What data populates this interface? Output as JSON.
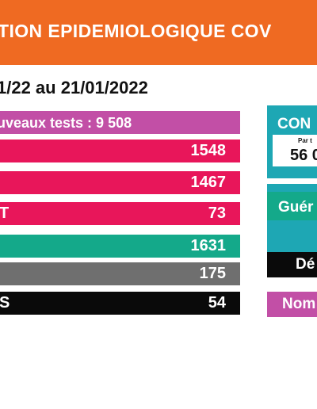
{
  "banner": {
    "title": "TION EPIDEMIOLOGIQUE COV"
  },
  "date_range": "1/22 au 21/01/2022",
  "rows": [
    {
      "label": "uveaux tests :  9 508",
      "value": ""
    },
    {
      "label": "",
      "value": "1548"
    },
    {
      "label": "",
      "value": "1467"
    },
    {
      "label": "T",
      "value": "73"
    },
    {
      "label": "",
      "value": "1631"
    },
    {
      "label": "",
      "value": "175"
    },
    {
      "label": "S",
      "value": "54"
    }
  ],
  "panel": {
    "header": "CON",
    "small_note": "Par t",
    "big_number": "56 0",
    "gueris_label": "Guér",
    "deces_label": "Dé",
    "nombre_label": "Nom"
  },
  "colors": {
    "banner": "#ef6a22",
    "tests": "#c24fa6",
    "red": "#e8165a",
    "green": "#14a98a",
    "gray": "#6f6f6f",
    "black": "#0a0a0a",
    "teal": "#1ea7b4",
    "purple": "#c24fa6"
  }
}
